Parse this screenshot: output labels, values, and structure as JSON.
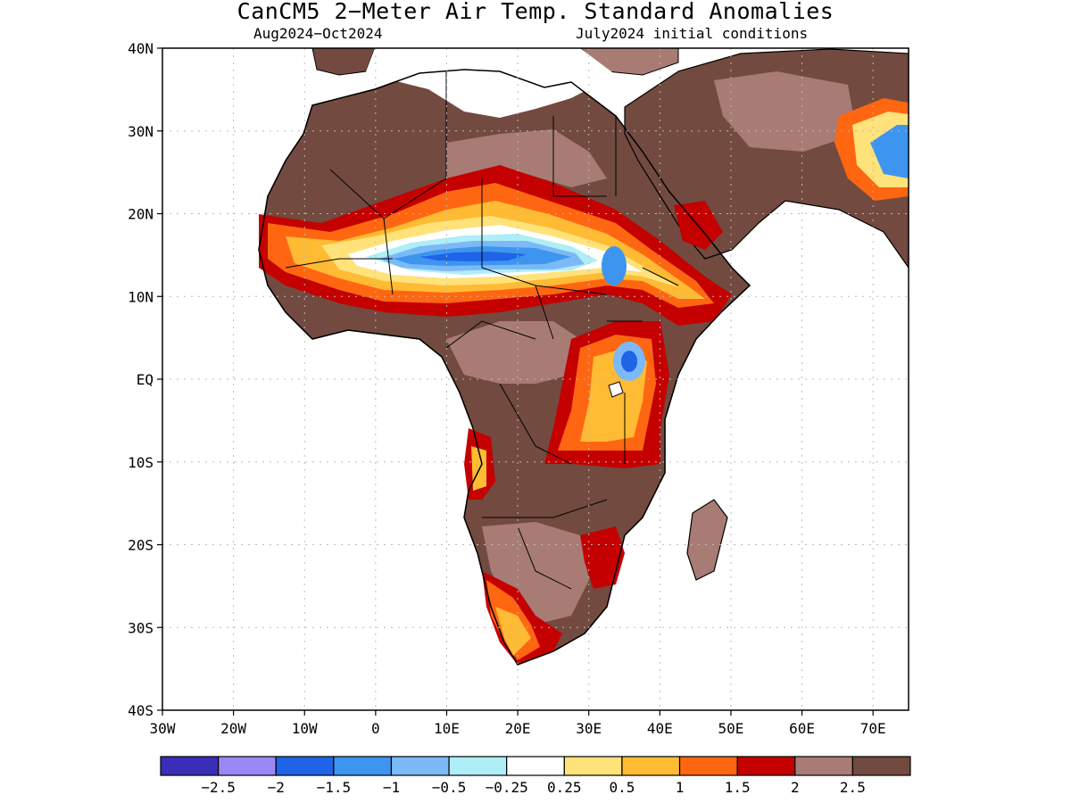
{
  "title": "CanCM5 2−Meter Air Temp. Standard Anomalies",
  "period": "Aug2024−Oct2024",
  "init_conditions": "July2024 initial conditions",
  "map": {
    "lon_range": [
      -30,
      75
    ],
    "lat_range": [
      -40,
      40
    ],
    "lat_labels": [
      "40N",
      "30N",
      "20N",
      "10N",
      "EQ",
      "10S",
      "20S",
      "30S",
      "40S"
    ],
    "lon_labels": [
      "30W",
      "20W",
      "10W",
      "0",
      "10E",
      "20E",
      "30E",
      "40E",
      "50E",
      "60E",
      "70E"
    ]
  },
  "colorbar": {
    "colors": [
      "#3a2db8",
      "#9b87f5",
      "#1f64e6",
      "#3d95f0",
      "#7bb9f7",
      "#aeeef7",
      "#ffffff",
      "#ffe27a",
      "#ffbb33",
      "#ff6611",
      "#c40000",
      "#a87c74",
      "#724a40"
    ],
    "labels": [
      "−2.5",
      "−2",
      "−1.5",
      "−1",
      "−0.5",
      "−0.25",
      "0.25",
      "0.5",
      "1",
      "1.5",
      "2",
      "2.5"
    ]
  }
}
